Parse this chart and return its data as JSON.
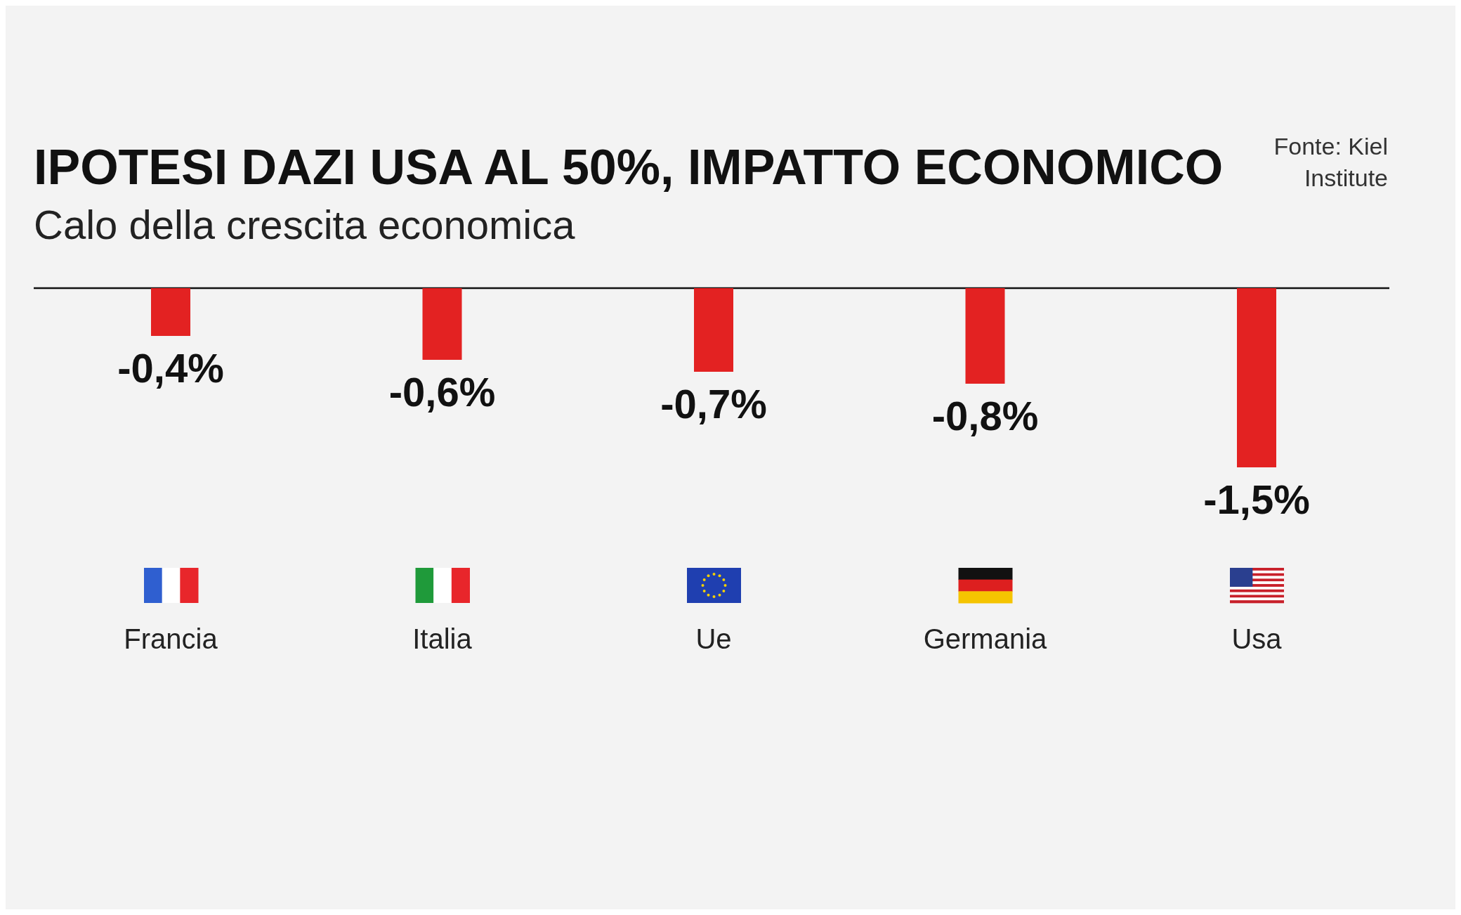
{
  "chart_data": {
    "type": "bar",
    "title": "IPOTESI DAZI USA AL 50%, IMPATTO ECONOMICO",
    "subtitle": "Calo della crescita economica",
    "annotations": [
      "Fonte: Kiel Institute"
    ],
    "categories": [
      "Francia",
      "Italia",
      "Ue",
      "Germania",
      "Usa"
    ],
    "values": [
      -0.4,
      -0.6,
      -0.7,
      -0.8,
      -1.5
    ],
    "value_labels": [
      "-0,4%",
      "-0,6%",
      "-0,7%",
      "-0,8%",
      "-1,5%"
    ],
    "color": "#e32222"
  }
}
